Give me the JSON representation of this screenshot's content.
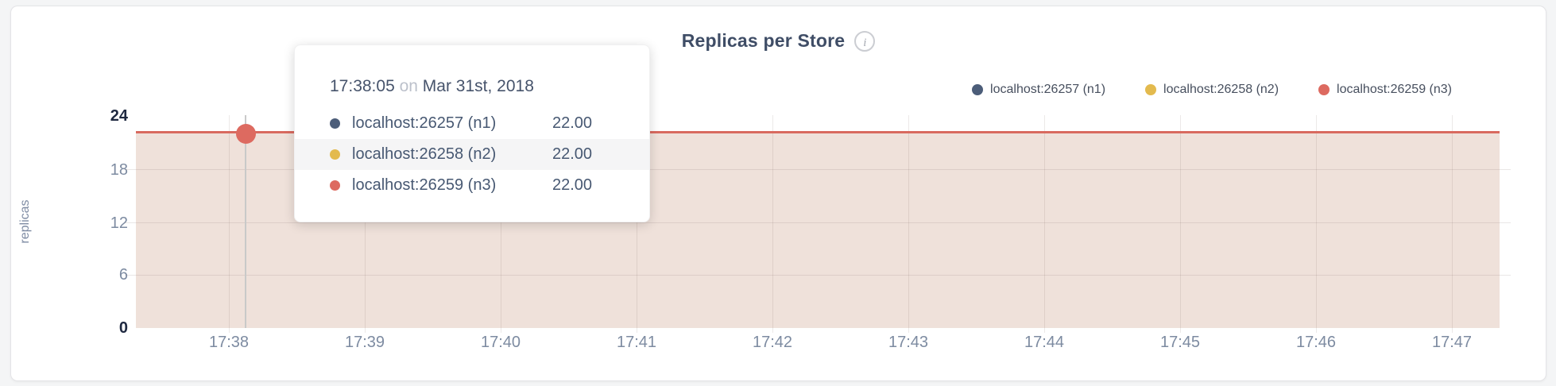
{
  "chart": {
    "title": "Replicas per Store",
    "info_icon": "i",
    "ylabel": "replicas",
    "y_ticks": [
      "24",
      "18",
      "12",
      "6",
      "0"
    ],
    "x_ticks": [
      "17:38",
      "17:39",
      "17:40",
      "17:41",
      "17:42",
      "17:43",
      "17:44",
      "17:45",
      "17:46",
      "17:47"
    ],
    "legend": [
      {
        "label": "localhost:26257 (n1)",
        "color": "#4c5d79"
      },
      {
        "label": "localhost:26258 (n2)",
        "color": "#e3ba4e"
      },
      {
        "label": "localhost:26259 (n3)",
        "color": "#dd6a60"
      }
    ]
  },
  "tooltip": {
    "time": "17:38:05",
    "conjunction": "on",
    "date": "Mar 31st, 2018",
    "rows": [
      {
        "name": "localhost:26257 (n1)",
        "value": "22.00",
        "color": "#4c5d79"
      },
      {
        "name": "localhost:26258 (n2)",
        "value": "22.00",
        "color": "#e3ba4e"
      },
      {
        "name": "localhost:26259 (n3)",
        "value": "22.00",
        "color": "#dd6a60"
      }
    ]
  },
  "colors": {
    "line": "#d96a5f",
    "area_fill": "#efe1da",
    "crosshair": "#c9c9c9",
    "hover_point": "#dd6a60"
  },
  "chart_data": {
    "type": "area",
    "title": "Replicas per Store",
    "xlabel": "",
    "ylabel": "replicas",
    "ylim": [
      0,
      24
    ],
    "y_ticks": [
      0,
      6,
      12,
      18,
      24
    ],
    "x": [
      "17:38",
      "17:39",
      "17:40",
      "17:41",
      "17:42",
      "17:43",
      "17:44",
      "17:45",
      "17:46",
      "17:47"
    ],
    "series": [
      {
        "name": "localhost:26257 (n1)",
        "color": "#4c5d79",
        "values": [
          22,
          22,
          22,
          22,
          22,
          22,
          22,
          22,
          22,
          22
        ]
      },
      {
        "name": "localhost:26258 (n2)",
        "color": "#e3ba4e",
        "values": [
          22,
          22,
          22,
          22,
          22,
          22,
          22,
          22,
          22,
          22
        ]
      },
      {
        "name": "localhost:26259 (n3)",
        "color": "#dd6a60",
        "values": [
          22,
          22,
          22,
          22,
          22,
          22,
          22,
          22,
          22,
          22
        ]
      }
    ],
    "grid": true,
    "legend_position": "top-right",
    "hover_tooltip": {
      "time": "17:38:05",
      "date": "Mar 31st, 2018",
      "values": [
        22,
        22,
        22
      ]
    }
  }
}
